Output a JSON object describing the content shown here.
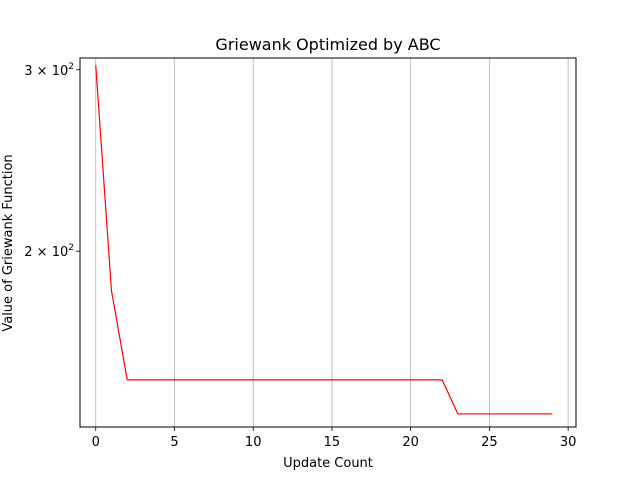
{
  "chart_data": {
    "type": "line",
    "title": "Griewank Optimized by ABC",
    "xlabel": "Update Count",
    "ylabel": "Value of Griewank Function",
    "yscale": "log",
    "xlim": [
      -1,
      30.5
    ],
    "ylim": [
      135,
      308
    ],
    "x_ticks": [
      0,
      5,
      10,
      15,
      20,
      25,
      30
    ],
    "x_tick_labels": [
      "0",
      "5",
      "10",
      "15",
      "20",
      "25",
      "30"
    ],
    "y_ticks": [
      {
        "value": 200,
        "base": "2 × 10",
        "exponent": "2"
      },
      {
        "value": 300,
        "base": "3 × 10",
        "exponent": "2"
      }
    ],
    "grid": "x-major",
    "series": [
      {
        "color": "#ff0000",
        "x": [
          0,
          1,
          2,
          3,
          4,
          5,
          6,
          7,
          8,
          9,
          10,
          11,
          12,
          13,
          14,
          15,
          16,
          17,
          18,
          19,
          20,
          21,
          22,
          23,
          24,
          25,
          26,
          27,
          28,
          29
        ],
        "y": [
          303,
          183,
          150,
          150,
          150,
          150,
          150,
          150,
          150,
          150,
          150,
          150,
          150,
          150,
          150,
          150,
          150,
          150,
          150,
          150,
          150,
          150,
          150,
          139,
          139,
          139,
          139,
          139,
          139,
          139
        ]
      }
    ]
  }
}
